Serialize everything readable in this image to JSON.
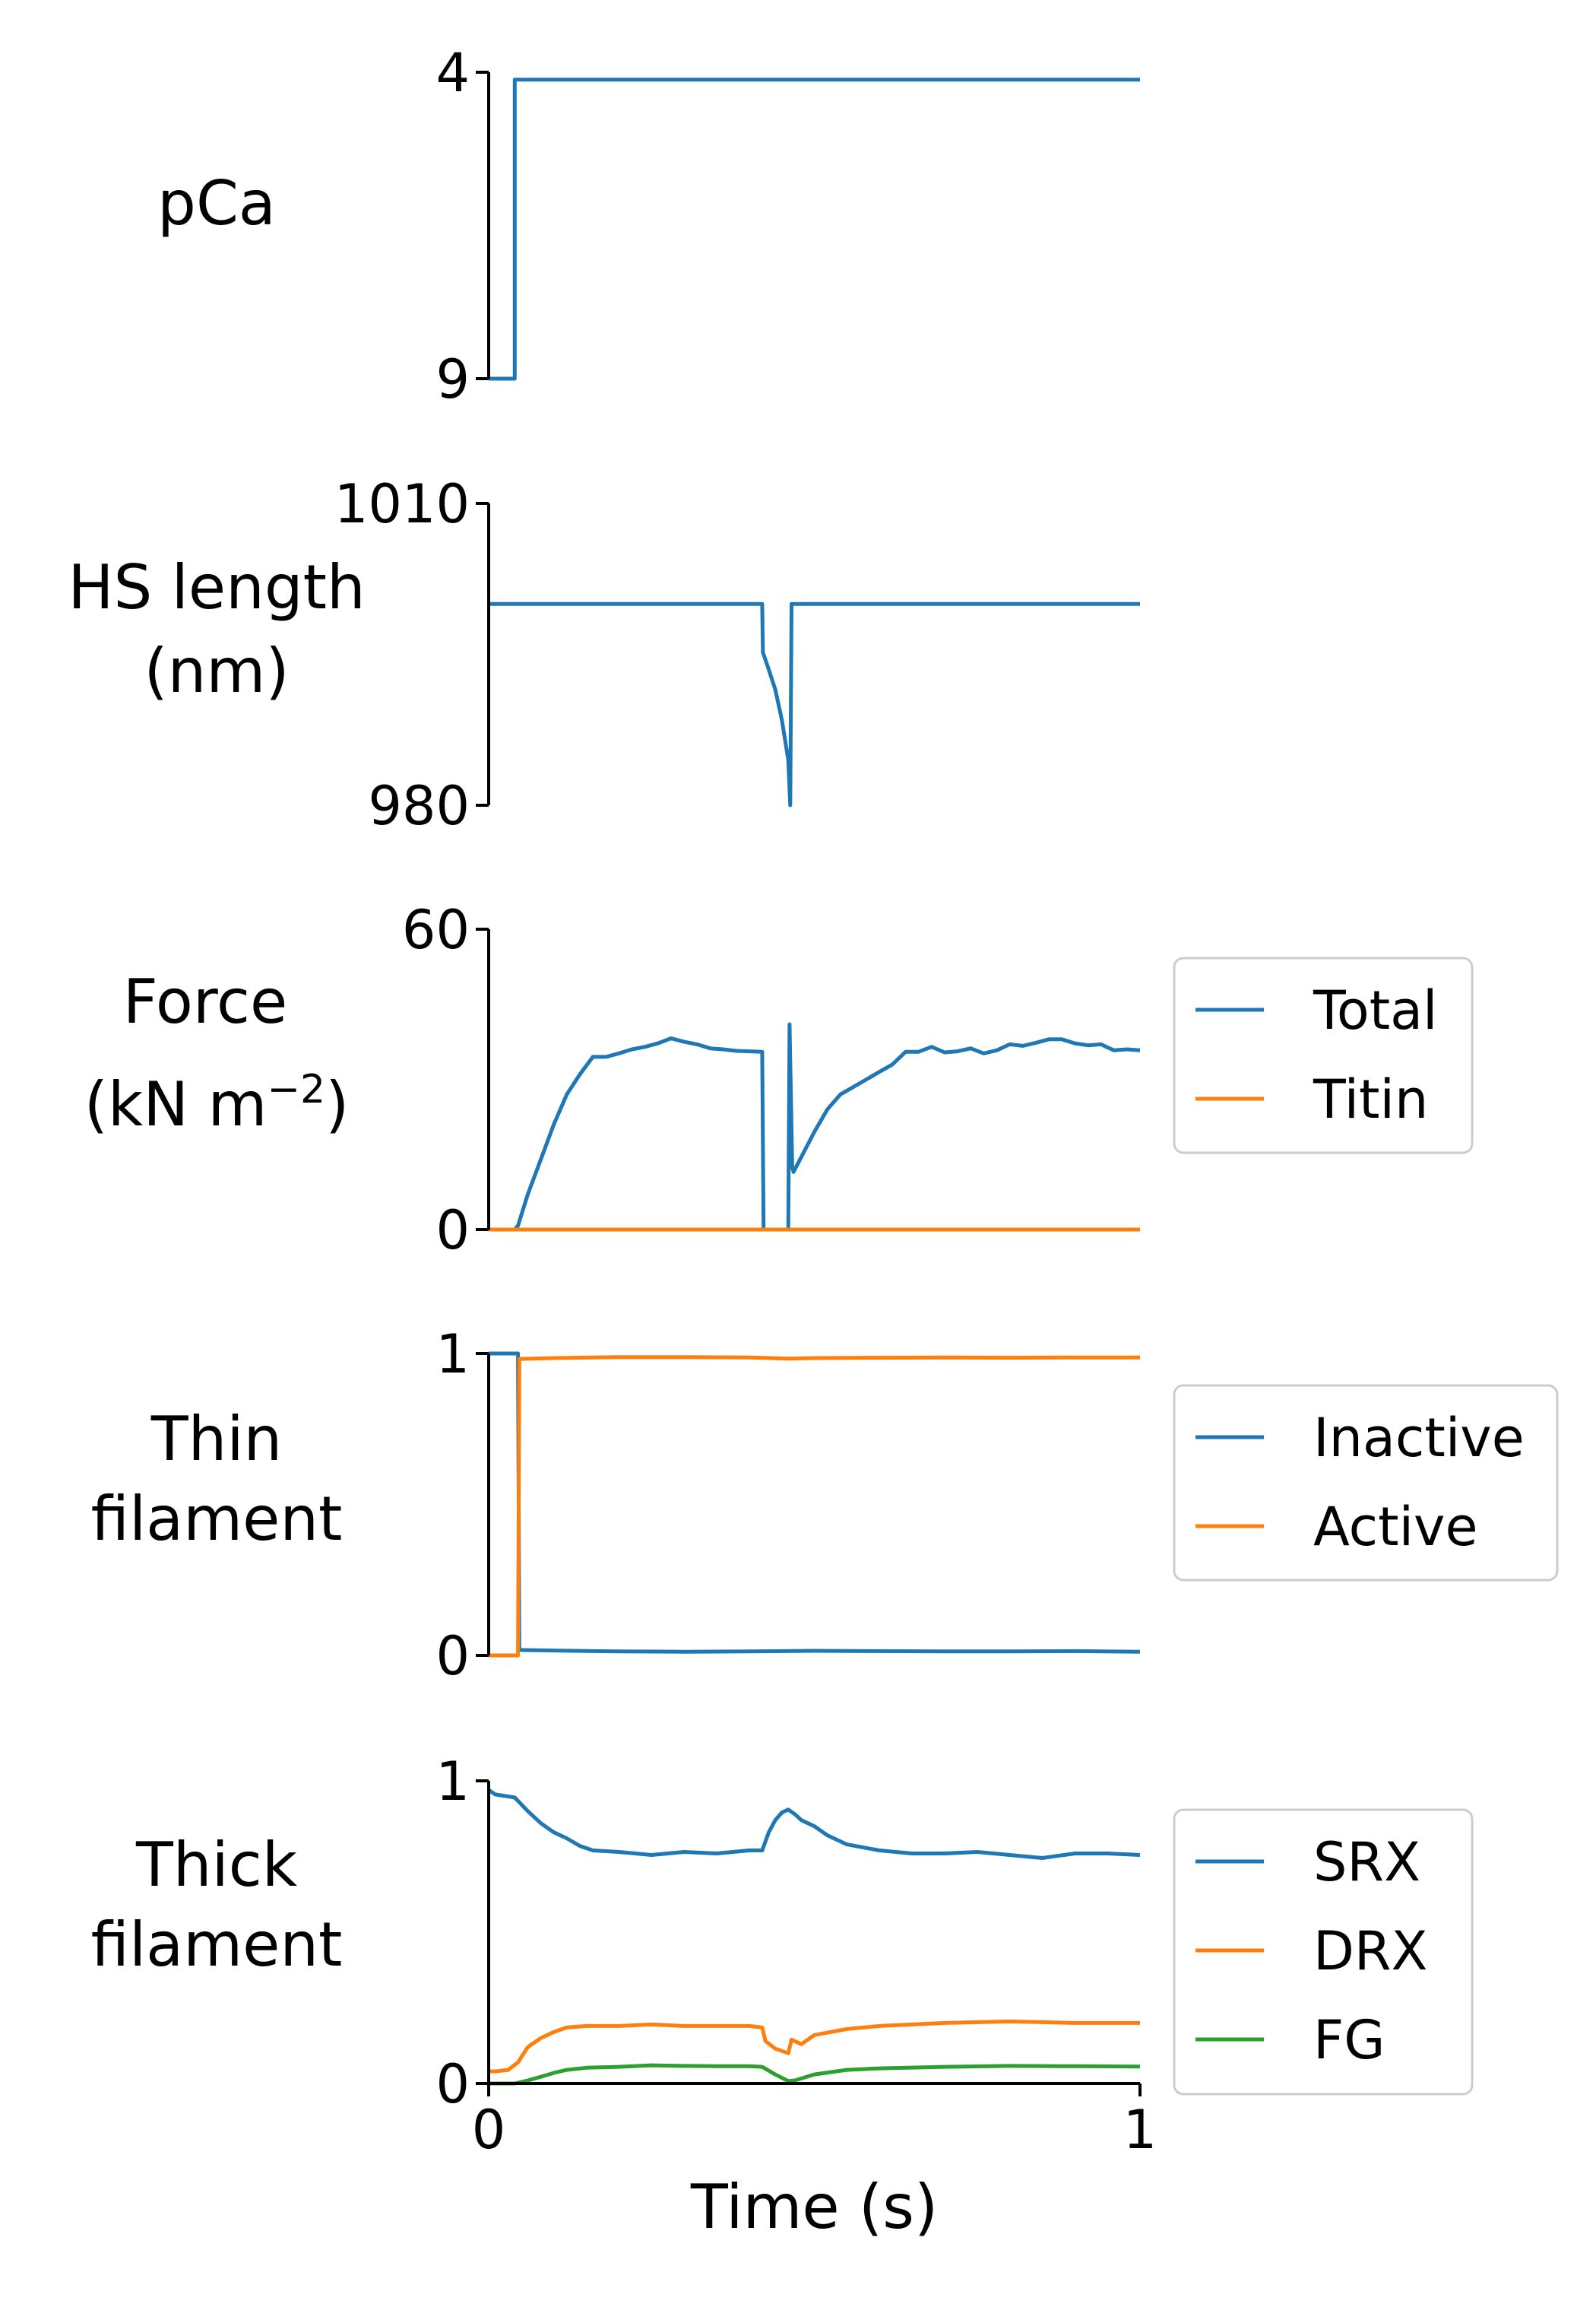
{
  "chart_data": [
    {
      "type": "line",
      "ylabel_lines": [
        "pCa"
      ],
      "yticks": [
        "4",
        "9"
      ],
      "series": [
        {
          "color": "#1f77b4",
          "x": [
            0,
            0.04,
            0.04,
            1
          ],
          "y": [
            9,
            9,
            4.12,
            4.12
          ]
        }
      ]
    },
    {
      "type": "line",
      "ylabel_lines": [
        "HS length",
        "(nm)"
      ],
      "yticks": [
        "1010",
        "980"
      ],
      "series": [
        {
          "color": "#1f77b4",
          "x": [
            0,
            0.42,
            0.421,
            0.43,
            0.44,
            0.45,
            0.46,
            0.463,
            0.465,
            1
          ],
          "y": [
            1000,
            1000,
            995.2,
            993.5,
            991.5,
            988.5,
            984.5,
            980,
            1000,
            1000
          ]
        }
      ]
    },
    {
      "type": "line",
      "ylabel_lines": [
        "Force",
        "(kN m",
        "−2",
        ")"
      ],
      "yticks": [
        "60",
        "0"
      ],
      "legend": {
        "position": "right",
        "entries": [
          "Total",
          "Titin"
        ]
      },
      "series": [
        {
          "name": "Total",
          "color": "#1f77b4",
          "x": [
            0,
            0.04,
            0.045,
            0.06,
            0.08,
            0.1,
            0.12,
            0.14,
            0.16,
            0.18,
            0.2,
            0.22,
            0.24,
            0.26,
            0.28,
            0.3,
            0.32,
            0.34,
            0.36,
            0.38,
            0.4,
            0.42,
            0.422,
            0.46,
            0.462,
            0.466,
            0.468,
            0.47,
            0.48,
            0.5,
            0.52,
            0.54,
            0.56,
            0.58,
            0.6,
            0.62,
            0.64,
            0.66,
            0.68,
            0.7,
            0.72,
            0.74,
            0.76,
            0.78,
            0.8,
            0.82,
            0.84,
            0.86,
            0.88,
            0.9,
            0.92,
            0.94,
            0.96,
            0.98,
            1.0
          ],
          "y": [
            0,
            0,
            0.8,
            7,
            14,
            21,
            27,
            31,
            34.5,
            34.5,
            35.2,
            36,
            36.5,
            37.2,
            38.2,
            37.5,
            37,
            36.2,
            36,
            35.7,
            35.6,
            35.5,
            0,
            0,
            41,
            12.5,
            11.5,
            12,
            14.5,
            19.5,
            24,
            27,
            28.5,
            30,
            31.5,
            33,
            35.5,
            35.5,
            36.5,
            35.4,
            35.6,
            36.2,
            35.2,
            35.8,
            37,
            36.7,
            37.3,
            38,
            38,
            37.2,
            36.8,
            37,
            35.8,
            36,
            35.8
          ]
        },
        {
          "name": "Titin",
          "color": "#ff7f0e",
          "x": [
            0,
            1
          ],
          "y": [
            0,
            0
          ]
        }
      ]
    },
    {
      "type": "line",
      "ylabel_lines": [
        "Thin",
        "filament"
      ],
      "yticks": [
        "1",
        "0"
      ],
      "legend": {
        "position": "right",
        "entries": [
          "Inactive",
          "Active"
        ]
      },
      "series": [
        {
          "name": "Inactive",
          "color": "#1f77b4",
          "x": [
            0,
            0.045,
            0.047,
            0.1,
            0.2,
            0.3,
            0.4,
            0.5,
            0.6,
            0.7,
            0.8,
            0.9,
            1.0
          ],
          "y": [
            1,
            1,
            0.018,
            0.016,
            0.013,
            0.012,
            0.013,
            0.015,
            0.014,
            0.013,
            0.013,
            0.014,
            0.012
          ]
        },
        {
          "name": "Active",
          "color": "#ff7f0e",
          "x": [
            0,
            0.045,
            0.047,
            0.1,
            0.2,
            0.3,
            0.4,
            0.46,
            0.5,
            0.6,
            0.7,
            0.8,
            0.9,
            1.0
          ],
          "y": [
            0,
            0,
            0.982,
            0.985,
            0.988,
            0.988,
            0.987,
            0.983,
            0.985,
            0.986,
            0.987,
            0.986,
            0.987,
            0.987
          ]
        }
      ]
    },
    {
      "type": "line",
      "ylabel_lines": [
        "Thick",
        "filament"
      ],
      "yticks": [
        "1",
        "0"
      ],
      "xticks": [
        "0",
        "1"
      ],
      "xlabel": "Time (s)",
      "legend": {
        "position": "right",
        "entries": [
          "SRX",
          "DRX",
          "FG"
        ]
      },
      "series": [
        {
          "name": "SRX",
          "color": "#1f77b4",
          "x": [
            0,
            0.01,
            0.04,
            0.06,
            0.08,
            0.1,
            0.12,
            0.14,
            0.16,
            0.2,
            0.25,
            0.3,
            0.35,
            0.4,
            0.42,
            0.43,
            0.44,
            0.45,
            0.46,
            0.47,
            0.48,
            0.5,
            0.52,
            0.55,
            0.6,
            0.65,
            0.7,
            0.75,
            0.8,
            0.85,
            0.9,
            0.95,
            1.0
          ],
          "y": [
            0.97,
            0.955,
            0.945,
            0.9,
            0.86,
            0.83,
            0.81,
            0.785,
            0.77,
            0.765,
            0.755,
            0.765,
            0.76,
            0.77,
            0.77,
            0.83,
            0.87,
            0.895,
            0.905,
            0.89,
            0.87,
            0.85,
            0.82,
            0.79,
            0.77,
            0.76,
            0.76,
            0.765,
            0.755,
            0.745,
            0.76,
            0.76,
            0.755
          ]
        },
        {
          "name": "DRX",
          "color": "#ff7f0e",
          "x": [
            0,
            0.01,
            0.03,
            0.045,
            0.06,
            0.08,
            0.1,
            0.12,
            0.15,
            0.2,
            0.25,
            0.3,
            0.35,
            0.4,
            0.42,
            0.425,
            0.44,
            0.46,
            0.465,
            0.48,
            0.5,
            0.55,
            0.6,
            0.7,
            0.8,
            0.9,
            1.0
          ],
          "y": [
            0.04,
            0.04,
            0.045,
            0.07,
            0.12,
            0.15,
            0.17,
            0.185,
            0.19,
            0.19,
            0.195,
            0.19,
            0.19,
            0.19,
            0.185,
            0.14,
            0.115,
            0.1,
            0.145,
            0.13,
            0.16,
            0.18,
            0.19,
            0.2,
            0.205,
            0.2,
            0.2
          ]
        },
        {
          "name": "FG",
          "color": "#2ca02c",
          "x": [
            0,
            0.04,
            0.06,
            0.08,
            0.1,
            0.12,
            0.15,
            0.2,
            0.25,
            0.3,
            0.35,
            0.4,
            0.42,
            0.44,
            0.46,
            0.47,
            0.5,
            0.55,
            0.6,
            0.7,
            0.8,
            0.9,
            1.0
          ],
          "y": [
            0,
            0,
            0.01,
            0.022,
            0.035,
            0.045,
            0.052,
            0.055,
            0.06,
            0.058,
            0.057,
            0.057,
            0.055,
            0.03,
            0.008,
            0.01,
            0.03,
            0.045,
            0.05,
            0.055,
            0.058,
            0.057,
            0.056
          ]
        }
      ]
    }
  ]
}
